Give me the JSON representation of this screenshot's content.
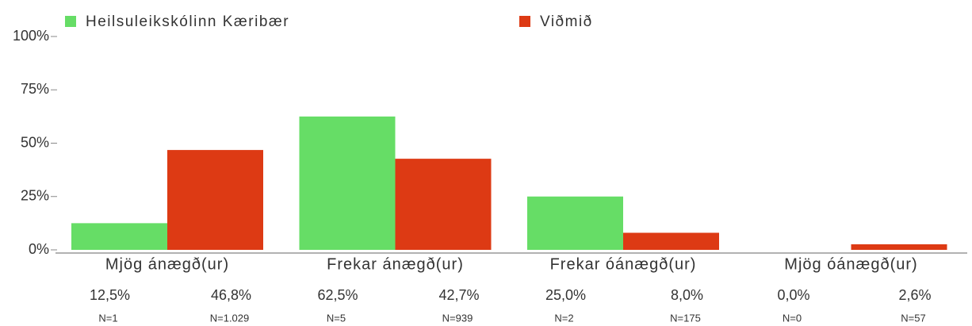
{
  "chart_data": {
    "type": "bar",
    "categories": [
      "Mjög ánægð(ur)",
      "Frekar ánægð(ur)",
      "Frekar óánægð(ur)",
      "Mjög óánægð(ur)"
    ],
    "series": [
      {
        "name": "Heilsuleikskólinn Kæribær",
        "color": "#66dd66",
        "values": [
          12.5,
          62.5,
          25.0,
          0.0
        ],
        "value_labels": [
          "12,5%",
          "62,5%",
          "25,0%",
          "0,0%"
        ],
        "n_labels": [
          "N=1",
          "N=5",
          "N=2",
          "N=0"
        ]
      },
      {
        "name": "Viðmið",
        "color": "#dd3a14",
        "values": [
          46.8,
          42.7,
          8.0,
          2.6
        ],
        "value_labels": [
          "46,8%",
          "42,7%",
          "8,0%",
          "2,6%"
        ],
        "n_labels": [
          "N=1.029",
          "N=939",
          "N=175",
          "N=57"
        ]
      }
    ],
    "ylim": [
      0,
      100
    ],
    "yticks": [
      {
        "value": 0,
        "label": "0%"
      },
      {
        "value": 25,
        "label": "25%"
      },
      {
        "value": 50,
        "label": "50%"
      },
      {
        "value": 75,
        "label": "75%"
      },
      {
        "value": 100,
        "label": "100%"
      }
    ],
    "legend": "top"
  }
}
